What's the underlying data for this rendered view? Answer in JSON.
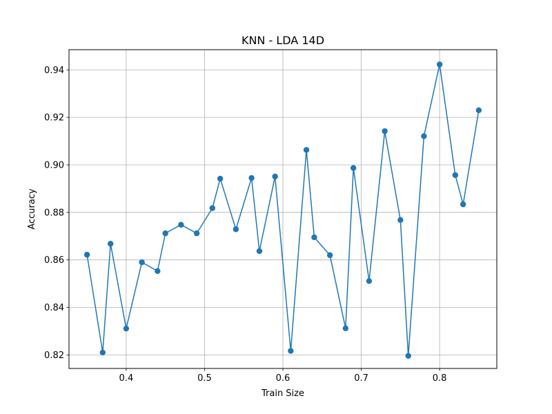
{
  "chart_data": {
    "type": "line",
    "title": "KNN - LDA 14D",
    "xlabel": "Train Size",
    "ylabel": "Accuracy",
    "xlim": [
      0.327,
      0.873
    ],
    "ylim": [
      0.8143,
      0.9485
    ],
    "xticks": [
      0.4,
      0.5,
      0.6,
      0.7,
      0.8
    ],
    "xtick_labels": [
      "0.4",
      "0.5",
      "0.6",
      "0.7",
      "0.8"
    ],
    "yticks": [
      0.82,
      0.84,
      0.86,
      0.88,
      0.9,
      0.92,
      0.94
    ],
    "ytick_labels": [
      "0.82",
      "0.84",
      "0.86",
      "0.88",
      "0.90",
      "0.92",
      "0.94"
    ],
    "grid": true,
    "markers": true,
    "color": "#1f77b4",
    "series": [
      {
        "x": [
          0.35,
          0.37,
          0.38,
          0.4,
          0.42,
          0.44,
          0.45,
          0.47,
          0.49,
          0.51,
          0.52,
          0.54,
          0.56,
          0.57,
          0.59,
          0.61,
          0.63,
          0.64,
          0.66,
          0.68,
          0.69,
          0.71,
          0.73,
          0.75,
          0.76,
          0.78,
          0.8,
          0.82,
          0.83,
          0.85
        ],
        "y": [
          0.8622,
          0.821,
          0.8668,
          0.8311,
          0.859,
          0.8553,
          0.8712,
          0.8748,
          0.8712,
          0.8818,
          0.8942,
          0.8729,
          0.8945,
          0.8637,
          0.8951,
          0.8217,
          0.9063,
          0.8695,
          0.862,
          0.8312,
          0.8987,
          0.8511,
          0.9142,
          0.8768,
          0.8196,
          0.9121,
          0.9423,
          0.8957,
          0.8834,
          0.923
        ]
      }
    ]
  }
}
